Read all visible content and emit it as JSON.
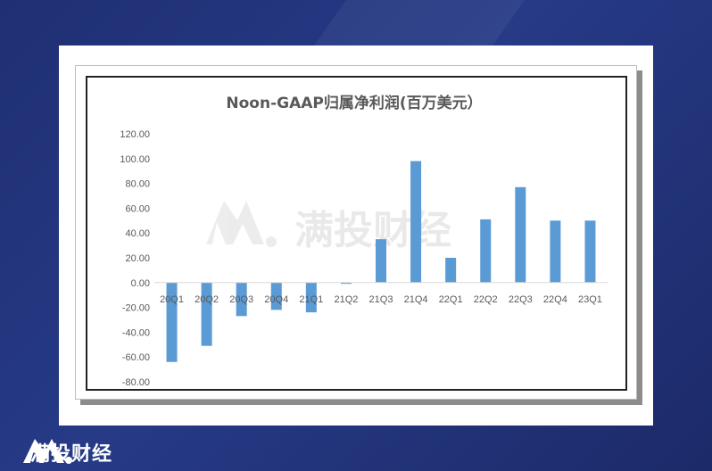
{
  "brand": {
    "name": "满投财经",
    "watermark": "满投财经"
  },
  "chart_data": {
    "type": "bar",
    "title": "Noon-GAAP归属净利润(百万美元）",
    "categories": [
      "20Q1",
      "20Q2",
      "20Q3",
      "20Q4",
      "21Q1",
      "21Q2",
      "21Q3",
      "21Q4",
      "22Q1",
      "22Q2",
      "22Q3",
      "22Q4",
      "23Q1"
    ],
    "values": [
      -64,
      -51,
      -27,
      -22,
      -24,
      -1,
      35,
      98,
      20,
      51,
      77,
      50,
      50
    ],
    "ylim": [
      -80,
      120
    ],
    "yticks": [
      "120.00",
      "100.00",
      "80.00",
      "60.00",
      "40.00",
      "20.00",
      "0.00",
      "-20.00",
      "-40.00",
      "-60.00",
      "-80.00"
    ],
    "ytick_values": [
      120,
      100,
      80,
      60,
      40,
      20,
      0,
      -20,
      -40,
      -60,
      -80
    ],
    "xlabel": "",
    "ylabel": "",
    "grid": false,
    "legend": "none",
    "colors": {
      "bar": "#5b9bd5",
      "axis": "#d9d9d9",
      "text": "#595959",
      "title": "#595959"
    }
  }
}
